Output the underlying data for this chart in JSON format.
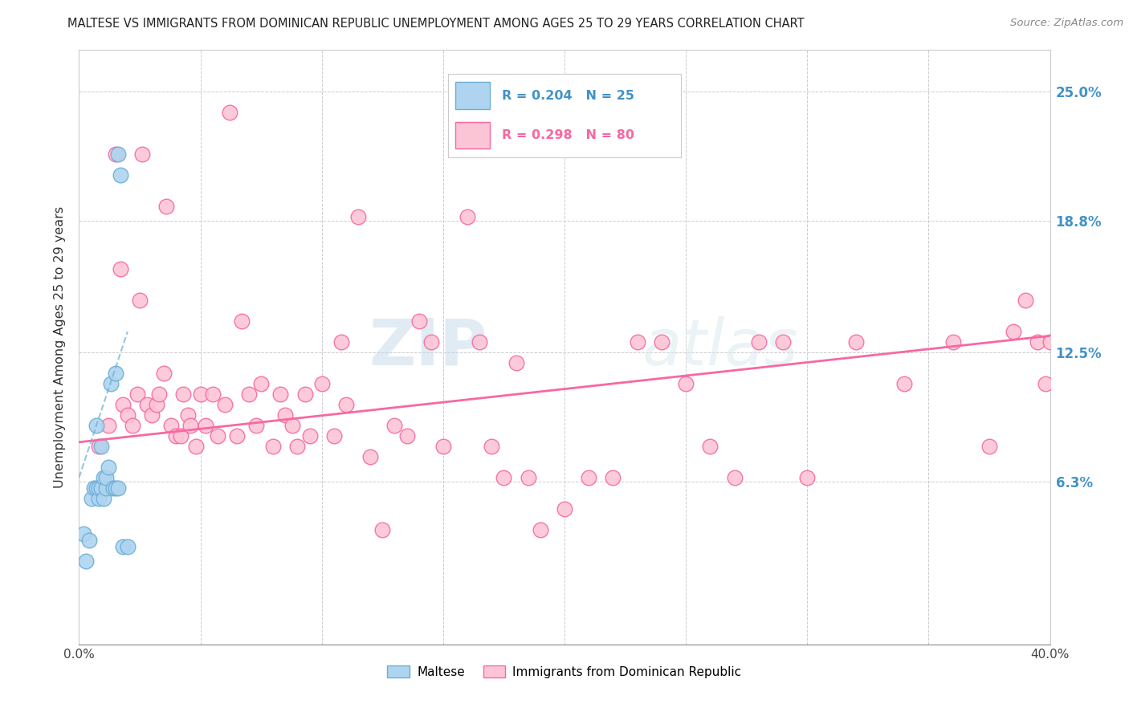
{
  "title": "MALTESE VS IMMIGRANTS FROM DOMINICAN REPUBLIC UNEMPLOYMENT AMONG AGES 25 TO 29 YEARS CORRELATION CHART",
  "source": "Source: ZipAtlas.com",
  "ylabel": "Unemployment Among Ages 25 to 29 years",
  "xlim": [
    0.0,
    0.4
  ],
  "ylim": [
    -0.015,
    0.27
  ],
  "xticks": [
    0.0,
    0.05,
    0.1,
    0.15,
    0.2,
    0.25,
    0.3,
    0.35,
    0.4
  ],
  "xticklabels": [
    "0.0%",
    "",
    "",
    "",
    "",
    "",
    "",
    "",
    "40.0%"
  ],
  "right_yticks": [
    0.063,
    0.125,
    0.188,
    0.25
  ],
  "right_yticklabels": [
    "6.3%",
    "12.5%",
    "18.8%",
    "25.0%"
  ],
  "maltese_color": "#aed4f0",
  "maltese_edge_color": "#6baed6",
  "dr_color": "#fcc5d5",
  "dr_edge_color": "#f768a1",
  "maltese_R": 0.204,
  "maltese_N": 25,
  "dr_R": 0.298,
  "dr_N": 80,
  "trend_blue_color": "#6baed6",
  "trend_pink_color": "#f768a1",
  "watermark": "ZIPatlas",
  "maltese_x": [
    0.002,
    0.003,
    0.004,
    0.005,
    0.006,
    0.007,
    0.007,
    0.008,
    0.008,
    0.009,
    0.009,
    0.01,
    0.01,
    0.011,
    0.011,
    0.012,
    0.013,
    0.014,
    0.015,
    0.015,
    0.016,
    0.016,
    0.017,
    0.018,
    0.02
  ],
  "maltese_y": [
    0.038,
    0.025,
    0.035,
    0.055,
    0.06,
    0.06,
    0.09,
    0.055,
    0.06,
    0.06,
    0.08,
    0.055,
    0.065,
    0.06,
    0.065,
    0.07,
    0.11,
    0.06,
    0.06,
    0.115,
    0.06,
    0.22,
    0.21,
    0.032,
    0.032
  ],
  "dr_x": [
    0.008,
    0.012,
    0.015,
    0.017,
    0.018,
    0.02,
    0.022,
    0.024,
    0.025,
    0.026,
    0.028,
    0.03,
    0.032,
    0.033,
    0.035,
    0.036,
    0.038,
    0.04,
    0.042,
    0.043,
    0.045,
    0.046,
    0.048,
    0.05,
    0.052,
    0.055,
    0.057,
    0.06,
    0.062,
    0.065,
    0.067,
    0.07,
    0.073,
    0.075,
    0.08,
    0.083,
    0.085,
    0.088,
    0.09,
    0.093,
    0.095,
    0.1,
    0.105,
    0.108,
    0.11,
    0.115,
    0.12,
    0.125,
    0.13,
    0.135,
    0.14,
    0.145,
    0.15,
    0.16,
    0.165,
    0.17,
    0.175,
    0.18,
    0.185,
    0.19,
    0.2,
    0.21,
    0.22,
    0.23,
    0.24,
    0.25,
    0.26,
    0.27,
    0.28,
    0.29,
    0.3,
    0.32,
    0.34,
    0.36,
    0.375,
    0.385,
    0.39,
    0.395,
    0.398,
    0.4
  ],
  "dr_y": [
    0.08,
    0.09,
    0.22,
    0.165,
    0.1,
    0.095,
    0.09,
    0.105,
    0.15,
    0.22,
    0.1,
    0.095,
    0.1,
    0.105,
    0.115,
    0.195,
    0.09,
    0.085,
    0.085,
    0.105,
    0.095,
    0.09,
    0.08,
    0.105,
    0.09,
    0.105,
    0.085,
    0.1,
    0.24,
    0.085,
    0.14,
    0.105,
    0.09,
    0.11,
    0.08,
    0.105,
    0.095,
    0.09,
    0.08,
    0.105,
    0.085,
    0.11,
    0.085,
    0.13,
    0.1,
    0.19,
    0.075,
    0.04,
    0.09,
    0.085,
    0.14,
    0.13,
    0.08,
    0.19,
    0.13,
    0.08,
    0.065,
    0.12,
    0.065,
    0.04,
    0.05,
    0.065,
    0.065,
    0.13,
    0.13,
    0.11,
    0.08,
    0.065,
    0.13,
    0.13,
    0.065,
    0.13,
    0.11,
    0.13,
    0.08,
    0.135,
    0.15,
    0.13,
    0.11,
    0.13
  ]
}
